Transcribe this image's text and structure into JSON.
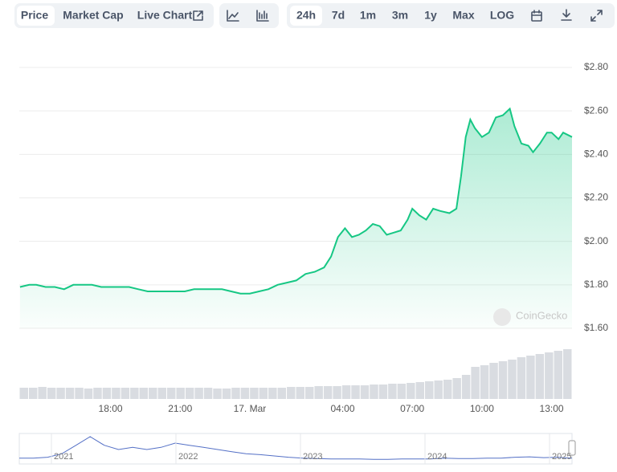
{
  "toolbar": {
    "views": [
      "Price",
      "Market Cap",
      "Live Chart"
    ],
    "ranges": [
      "24h",
      "7d",
      "1m",
      "3m",
      "1y",
      "Max",
      "LOG"
    ]
  },
  "chart_data": {
    "type": "line",
    "color": "#16c784",
    "x": [
      -9.9,
      -9.5,
      -9.2,
      -8.8,
      -8.4,
      -8.0,
      -7.6,
      -7.2,
      -6.8,
      -6.4,
      -6.0,
      -5.6,
      -5.2,
      -4.8,
      -4.4,
      -4.0,
      -3.6,
      -3.2,
      -2.8,
      -2.4,
      -2.0,
      -1.6,
      -1.2,
      -0.8,
      -0.4,
      0,
      0.4,
      0.8,
      1.2,
      1.6,
      2.0,
      2.4,
      2.8,
      3.2,
      3.5,
      3.8,
      4.1,
      4.4,
      4.7,
      5.0,
      5.3,
      5.6,
      5.9,
      6.2,
      6.5,
      6.8,
      7.0,
      7.3,
      7.6,
      7.9,
      8.2,
      8.6,
      8.9,
      9.1,
      9.3,
      9.5,
      9.7,
      10.0,
      10.3,
      10.6,
      10.9,
      11.2,
      11.4,
      11.7,
      12.0,
      12.2,
      12.5,
      12.8,
      13.0,
      13.3,
      13.5,
      13.88
    ],
    "values": [
      1.79,
      1.8,
      1.8,
      1.79,
      1.79,
      1.78,
      1.8,
      1.8,
      1.8,
      1.79,
      1.79,
      1.79,
      1.79,
      1.78,
      1.77,
      1.77,
      1.77,
      1.77,
      1.77,
      1.78,
      1.78,
      1.78,
      1.78,
      1.77,
      1.76,
      1.76,
      1.77,
      1.78,
      1.8,
      1.81,
      1.82,
      1.85,
      1.86,
      1.88,
      1.93,
      2.02,
      2.06,
      2.02,
      2.03,
      2.05,
      2.08,
      2.07,
      2.03,
      2.04,
      2.05,
      2.1,
      2.15,
      2.12,
      2.1,
      2.15,
      2.14,
      2.13,
      2.15,
      2.3,
      2.48,
      2.56,
      2.52,
      2.48,
      2.5,
      2.57,
      2.58,
      2.61,
      2.53,
      2.45,
      2.44,
      2.41,
      2.45,
      2.5,
      2.5,
      2.47,
      2.5,
      2.48
    ],
    "xlim": [
      -9.93,
      13.88
    ],
    "xticks": [
      {
        "value": -6,
        "label": "18:00"
      },
      {
        "value": -3,
        "label": "21:00"
      },
      {
        "value": 0,
        "label": "17. Mar"
      },
      {
        "value": 4,
        "label": "04:00"
      },
      {
        "value": 7,
        "label": "07:00"
      },
      {
        "value": 10,
        "label": "10:00"
      },
      {
        "value": 13,
        "label": "13:00"
      }
    ],
    "ylim": [
      1.6,
      2.8
    ],
    "yticks": [
      {
        "value": 1.6,
        "label": "$1.60"
      },
      {
        "value": 1.8,
        "label": "$1.80"
      },
      {
        "value": 2.0,
        "label": "$2.00"
      },
      {
        "value": 2.2,
        "label": "$2.20"
      },
      {
        "value": 2.4,
        "label": "$2.40"
      },
      {
        "value": 2.6,
        "label": "$2.60"
      },
      {
        "value": 2.8,
        "label": "$2.80"
      }
    ],
    "grid": true,
    "watermark": "CoinGecko",
    "volume": {
      "color": "#d9dce1",
      "values": [
        14,
        14,
        15,
        14,
        14,
        14,
        14,
        13,
        14,
        14,
        14,
        14,
        14,
        14,
        14,
        14,
        14,
        14,
        14,
        14,
        14,
        13,
        13,
        14,
        14,
        14,
        14,
        14,
        14,
        15,
        15,
        15,
        16,
        16,
        16,
        17,
        17,
        17,
        18,
        18,
        19,
        19,
        20,
        21,
        22,
        23,
        24,
        26,
        30,
        40,
        42,
        45,
        47,
        49,
        52,
        54,
        56,
        58,
        60,
        62
      ]
    },
    "navigator": {
      "color": "#5470c6",
      "labels": [
        "2021",
        "2022",
        "2023",
        "2024",
        "2025"
      ],
      "values": [
        1,
        1,
        1.2,
        2,
        4,
        6,
        4,
        3,
        3.5,
        3,
        3.5,
        4.5,
        4,
        3.5,
        3,
        2.5,
        2,
        1.8,
        1.5,
        1.2,
        1,
        0.9,
        0.8,
        0.8,
        0.8,
        0.7,
        0.7,
        0.8,
        0.8,
        0.8,
        1,
        0.9,
        0.9,
        1,
        1,
        1.2,
        1.3,
        1.1,
        1.2,
        1.0
      ]
    }
  }
}
